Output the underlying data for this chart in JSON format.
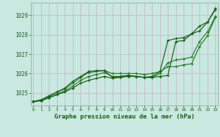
{
  "title": "Graphe pression niveau de la mer (hPa)",
  "background_color": "#c8e8e0",
  "grid_color_h": "#c0b8c8",
  "grid_color_v": "#c8c0cc",
  "line_color_dark": "#1a5c1a",
  "line_color_mid": "#2a7a2a",
  "xlim": [
    -0.3,
    23.3
  ],
  "ylim": [
    1024.35,
    1029.65
  ],
  "yticks": [
    1025,
    1026,
    1027,
    1028,
    1029
  ],
  "xticks": [
    0,
    1,
    2,
    3,
    4,
    5,
    6,
    7,
    8,
    9,
    10,
    11,
    12,
    13,
    14,
    15,
    16,
    17,
    18,
    19,
    20,
    21,
    22,
    23
  ],
  "series1": [
    1024.55,
    1024.6,
    1024.75,
    1024.9,
    1025.05,
    1025.25,
    1025.5,
    1025.65,
    1025.75,
    1025.85,
    1025.75,
    1025.8,
    1025.85,
    1025.85,
    1025.8,
    1025.8,
    1025.85,
    1025.9,
    1027.65,
    1027.7,
    1028.05,
    1028.45,
    1028.65,
    1029.35
  ],
  "series2": [
    1024.55,
    1024.6,
    1024.75,
    1024.95,
    1025.1,
    1025.35,
    1025.65,
    1025.85,
    1025.95,
    1026.05,
    1025.85,
    1025.85,
    1025.9,
    1025.85,
    1025.8,
    1025.8,
    1026.0,
    1026.55,
    1026.7,
    1026.75,
    1026.85,
    1027.65,
    1028.15,
    1028.95
  ],
  "series3": [
    1024.55,
    1024.6,
    1024.8,
    1025.05,
    1025.2,
    1025.5,
    1025.8,
    1026.05,
    1026.1,
    1026.15,
    1026.0,
    1026.0,
    1026.0,
    1026.0,
    1025.95,
    1026.0,
    1026.1,
    1026.35,
    1026.35,
    1026.45,
    1026.5,
    1027.4,
    1027.95,
    1028.9
  ],
  "series4": [
    1024.55,
    1024.65,
    1024.85,
    1025.05,
    1025.25,
    1025.6,
    1025.85,
    1026.1,
    1026.15,
    1026.15,
    1025.8,
    1025.85,
    1025.9,
    1025.85,
    1025.8,
    1025.85,
    1026.1,
    1027.7,
    1027.8,
    1027.85,
    1028.05,
    1028.2,
    1028.65,
    1029.3
  ]
}
